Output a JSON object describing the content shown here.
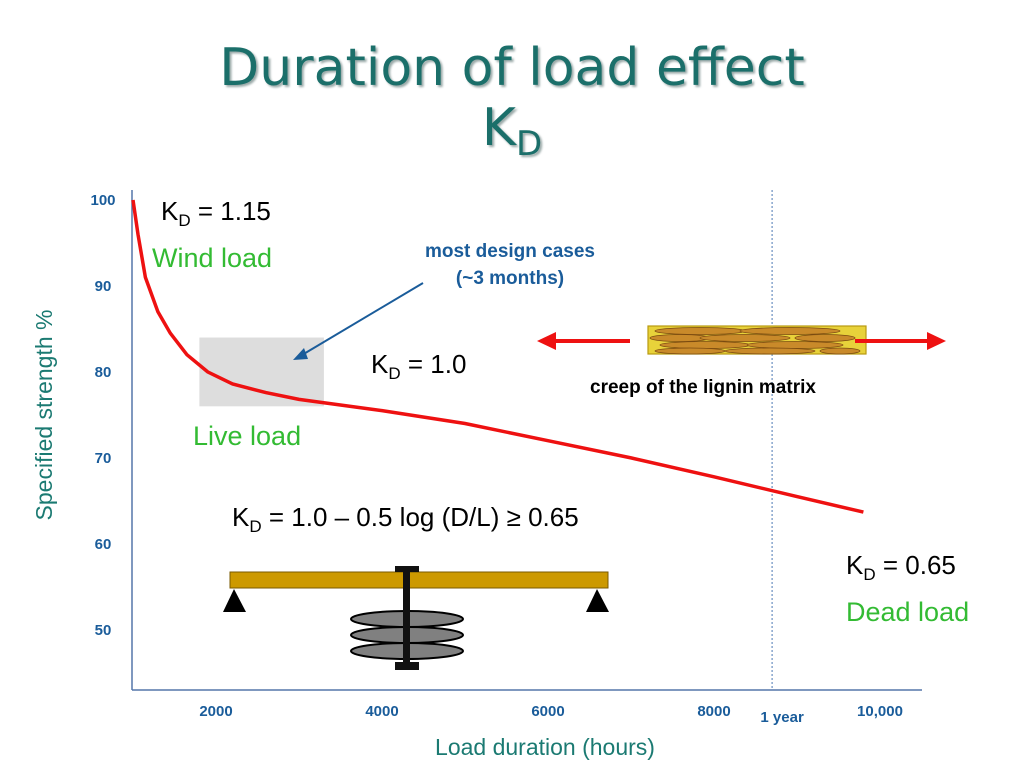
{
  "slide": {
    "title_line1": "Duration of load effect",
    "title_line2_main": "K",
    "title_line2_sub": "D"
  },
  "chart_data": {
    "type": "line",
    "xlabel": "Load duration (hours)",
    "ylabel": "Specified strength %",
    "x_ticks": [
      "2000",
      "4000",
      "6000",
      "8000",
      "10,000"
    ],
    "y_ticks": [
      "50",
      "60",
      "70",
      "80",
      "90",
      "100"
    ],
    "xlim": [
      1000,
      10000
    ],
    "ylim": [
      43,
      100
    ],
    "series": [
      {
        "color": "#ee1111",
        "x": [
          1000,
          1060,
          1150,
          1300,
          1450,
          1650,
          1900,
          2200,
          2600,
          3000,
          4000,
          5000,
          6000,
          7000,
          8000,
          9000,
          9800
        ],
        "y": [
          100,
          96,
          91,
          87,
          84.5,
          82,
          80,
          78.6,
          77.6,
          76.8,
          75.5,
          74,
          72,
          70,
          67.8,
          65.5,
          63.7
        ]
      }
    ],
    "annotations": {
      "one_year_line": {
        "x": 8700,
        "label": "1 year"
      },
      "live_load_box": {
        "x_range": [
          1800,
          3300
        ],
        "y_range": [
          76,
          84
        ]
      }
    }
  },
  "labels": {
    "kd115": {
      "k": "K",
      "sub": "D",
      "rest": " = 1.15"
    },
    "wind": "Wind load",
    "most_design_line1": "most design cases",
    "most_design_line2": "(~3 months)",
    "kd10": {
      "k": "K",
      "sub": "D",
      "rest": " = 1.0"
    },
    "creep": "creep of the lignin matrix",
    "live": "Live load",
    "formula": {
      "k": "K",
      "sub": "D",
      "rest": " = 1.0 – 0.5 log (D/L) ≥ 0.65"
    },
    "kd065": {
      "k": "K",
      "sub": "D",
      "rest": " = 0.65"
    },
    "dead": "Dead load"
  },
  "colors": {
    "title": "#1b6f6a",
    "curve": "#ee1111",
    "green_text": "#33bb33",
    "tick_text": "#1a5c9a",
    "beam": "#cc9900",
    "arrow_blue": "#1a5c9a"
  }
}
